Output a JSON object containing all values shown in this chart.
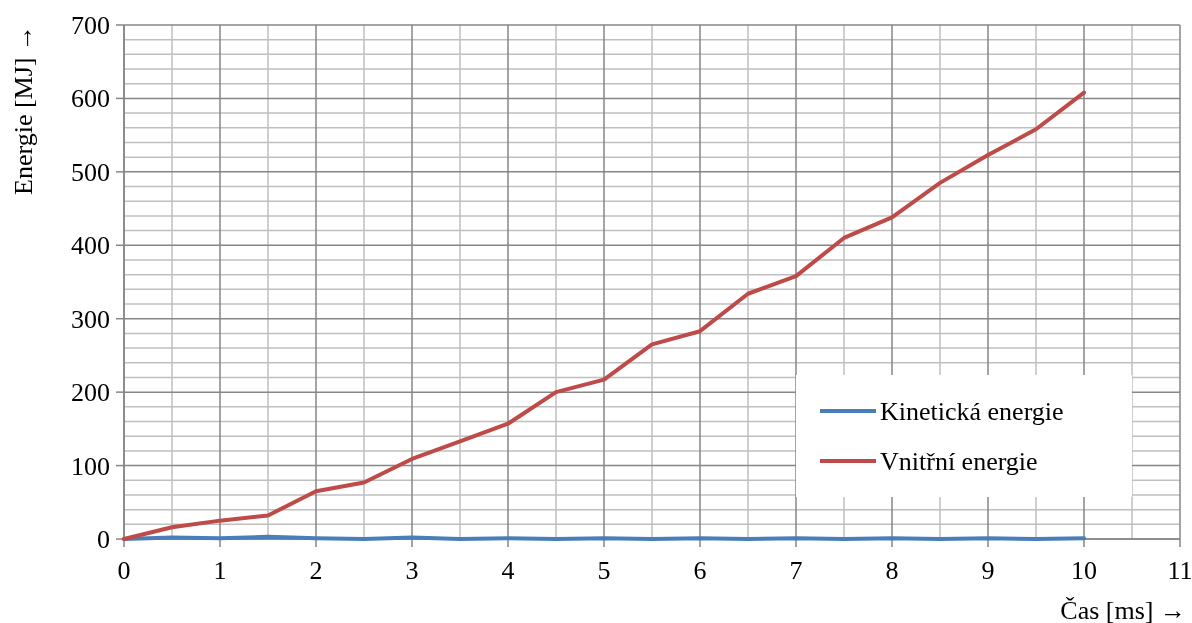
{
  "chart_data": {
    "type": "line",
    "xlabel": "Čas [ms] →",
    "ylabel": "Energie [MJ] →",
    "x": [
      0,
      0.5,
      1,
      1.5,
      2,
      2.5,
      3,
      3.5,
      4,
      4.5,
      5,
      5.5,
      6,
      6.5,
      7,
      7.5,
      8,
      8.5,
      9,
      9.5,
      10
    ],
    "series": [
      {
        "name": "Kinetická energie",
        "color": "#4a7ebb",
        "values": [
          0,
          2,
          1,
          3,
          1,
          0,
          2,
          0,
          1,
          0,
          1,
          0,
          1,
          0,
          1,
          0,
          1,
          0,
          1,
          0,
          1
        ]
      },
      {
        "name": "Vnitřní energie",
        "color": "#be4b48",
        "values": [
          0,
          16,
          25,
          32,
          65,
          77,
          109,
          133,
          157,
          200,
          217,
          265,
          283,
          334,
          358,
          410,
          438,
          485,
          523,
          558,
          608
        ]
      }
    ],
    "xlim": [
      0,
      11
    ],
    "xticks": [
      0,
      1,
      2,
      3,
      4,
      5,
      6,
      7,
      8,
      9,
      10,
      11
    ],
    "ylim": [
      0,
      700
    ],
    "yticks": [
      0,
      100,
      200,
      300,
      400,
      500,
      600,
      700
    ],
    "grid": true,
    "legend": "bottom right",
    "marker": "none",
    "line_style": "solid"
  }
}
